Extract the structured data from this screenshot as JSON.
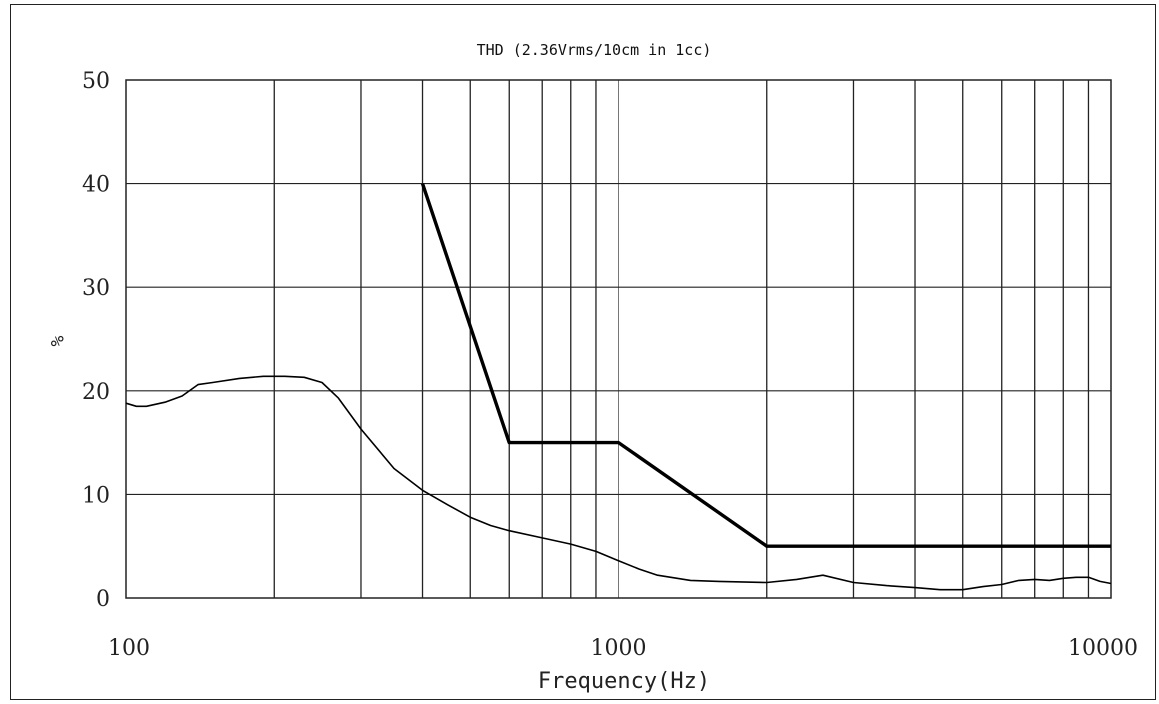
{
  "chart_data": {
    "type": "line",
    "title": "THD (2.36Vrms/10cm in 1cc)",
    "xlabel": "Frequency(Hz)",
    "ylabel": "%",
    "x_scale": "log",
    "xlim": [
      100,
      10000
    ],
    "ylim": [
      0,
      50
    ],
    "x_tick_labels": [
      "100",
      "1000",
      "10000"
    ],
    "x_ticks": [
      100,
      1000,
      10000
    ],
    "y_ticks": [
      0,
      10,
      20,
      30,
      40,
      50
    ],
    "grid": true,
    "series": [
      {
        "name": "",
        "style": "thin",
        "x": [
          100,
          105,
          110,
          120,
          130,
          140,
          150,
          170,
          190,
          210,
          230,
          250,
          270,
          300,
          350,
          400,
          450,
          500,
          550,
          600,
          700,
          800,
          900,
          1000,
          1100,
          1200,
          1400,
          1600,
          2000,
          2300,
          2600,
          3000,
          3500,
          4000,
          4500,
          5000,
          5500,
          6000,
          6500,
          7000,
          7500,
          8000,
          8500,
          9000,
          9500,
          10000
        ],
        "y": [
          18.8,
          18.5,
          18.5,
          18.9,
          19.5,
          20.6,
          20.8,
          21.2,
          21.4,
          21.4,
          21.3,
          20.8,
          19.3,
          16.3,
          12.5,
          10.4,
          9.0,
          7.8,
          7.0,
          6.5,
          5.8,
          5.2,
          4.5,
          3.6,
          2.8,
          2.2,
          1.7,
          1.6,
          1.5,
          1.8,
          2.2,
          1.5,
          1.2,
          1.0,
          0.8,
          0.8,
          1.1,
          1.3,
          1.7,
          1.8,
          1.7,
          1.9,
          2.0,
          2.0,
          1.6,
          1.4
        ]
      },
      {
        "name": "",
        "style": "bold",
        "x": [
          400,
          600,
          1000,
          2000,
          10000
        ],
        "y": [
          40,
          15,
          15,
          5,
          5
        ]
      }
    ]
  }
}
